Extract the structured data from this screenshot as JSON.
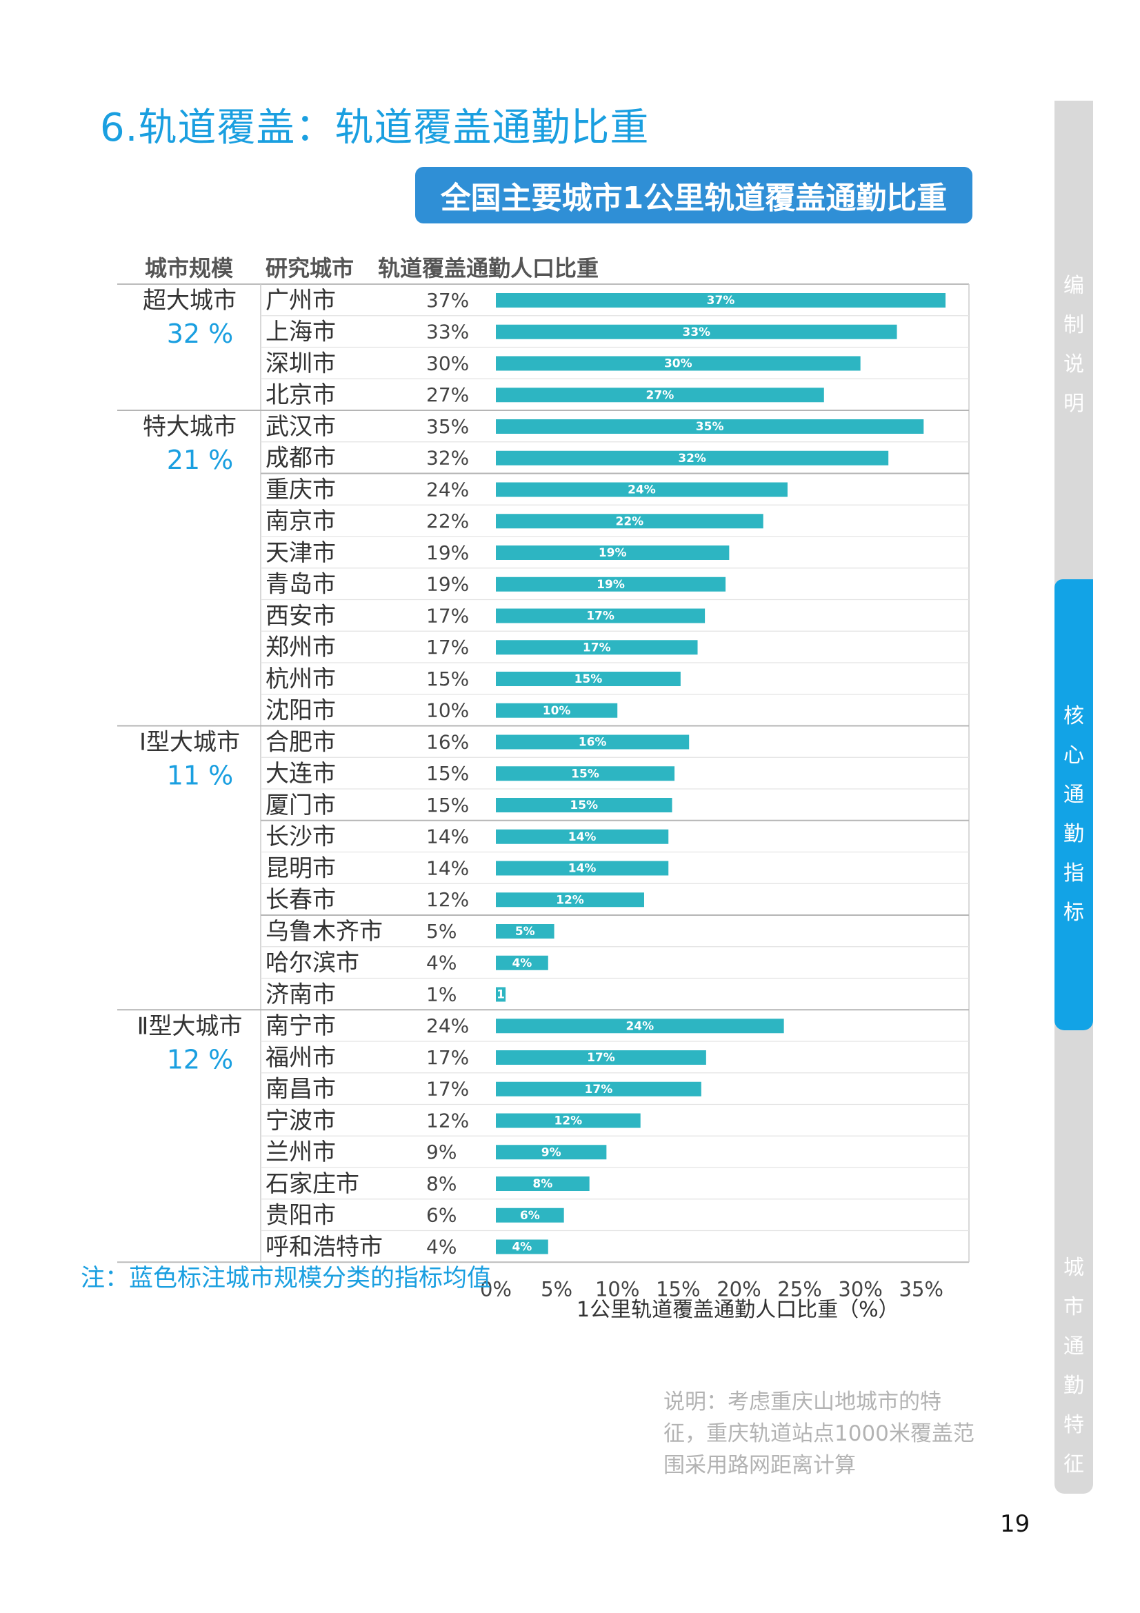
{
  "page": {
    "title": "6.轨道覆盖：轨道覆盖通勤比重",
    "chart_banner": "全国主要城市1公里轨道覆盖通勤比重",
    "note": "注：蓝色标注城市规模分类的指标均值",
    "explain": "说明：考虑重庆山地城市的特征，重庆轨道站点1000米覆盖范围采用路网距离计算",
    "page_number": "19"
  },
  "side_tabs": [
    {
      "label": "编制说明",
      "active": false
    },
    {
      "label": "核心通勤指标",
      "active": true
    },
    {
      "label": "城市通勤特征",
      "active": false
    }
  ],
  "colors": {
    "bar": "#2db5c2",
    "accent": "#1a9fe0",
    "banner": "#2f8fd6",
    "tab_active": "#12a3e6",
    "tab_inactive": "#d9d9d9"
  },
  "chart_data": {
    "type": "bar",
    "orientation": "horizontal",
    "title": "全国主要城市1公里轨道覆盖通勤比重",
    "column_headers": [
      "城市规模",
      "研究城市",
      "轨道覆盖通勤人口比重"
    ],
    "xlabel": "1公里轨道覆盖通勤人口比重（%）",
    "xlim": [
      0,
      37
    ],
    "xticks": [
      "0%",
      "5%",
      "10%",
      "15%",
      "20%",
      "25%",
      "30%",
      "35%"
    ],
    "xtick_values": [
      0,
      5,
      10,
      15,
      20,
      25,
      30,
      35
    ],
    "groups": [
      {
        "name": "超大城市",
        "average": "32 %",
        "first_row": 0
      },
      {
        "name": "特大城市",
        "average": "21 %",
        "first_row": 4
      },
      {
        "name": "Ⅰ型大城市",
        "average": "11 %",
        "first_row": 14
      },
      {
        "name": "Ⅱ型大城市",
        "average": "12 %",
        "first_row": 23
      }
    ],
    "separators_after": [
      3,
      5,
      13,
      16,
      19,
      22
    ],
    "rows": [
      {
        "city": "广州市",
        "label": "37%",
        "value": 37
      },
      {
        "city": "上海市",
        "label": "33%",
        "value": 33
      },
      {
        "city": "深圳市",
        "label": "30%",
        "value": 30
      },
      {
        "city": "北京市",
        "label": "27%",
        "value": 27
      },
      {
        "city": "武汉市",
        "label": "35%",
        "value": 35.2
      },
      {
        "city": "成都市",
        "label": "32%",
        "value": 32.3
      },
      {
        "city": "重庆市",
        "label": "24%",
        "value": 24
      },
      {
        "city": "南京市",
        "label": "22%",
        "value": 22
      },
      {
        "city": "天津市",
        "label": "19%",
        "value": 19.2
      },
      {
        "city": "青岛市",
        "label": "19%",
        "value": 18.9
      },
      {
        "city": "西安市",
        "label": "17%",
        "value": 17.2
      },
      {
        "city": "郑州市",
        "label": "17%",
        "value": 16.6
      },
      {
        "city": "杭州市",
        "label": "15%",
        "value": 15.2
      },
      {
        "city": "沈阳市",
        "label": "10%",
        "value": 10
      },
      {
        "city": "合肥市",
        "label": "16%",
        "value": 15.9
      },
      {
        "city": "大连市",
        "label": "15%",
        "value": 14.7
      },
      {
        "city": "厦门市",
        "label": "15%",
        "value": 14.5
      },
      {
        "city": "长沙市",
        "label": "14%",
        "value": 14.2
      },
      {
        "city": "昆明市",
        "label": "14%",
        "value": 14.2
      },
      {
        "city": "长春市",
        "label": "12%",
        "value": 12.2
      },
      {
        "city": "乌鲁木齐市",
        "label": "5%",
        "value": 4.8
      },
      {
        "city": "哈尔滨市",
        "label": "4%",
        "value": 4.3
      },
      {
        "city": "济南市",
        "label": "1%",
        "value": 0.8
      },
      {
        "city": "南宁市",
        "label": "24%",
        "value": 23.7
      },
      {
        "city": "福州市",
        "label": "17%",
        "value": 17.3
      },
      {
        "city": "南昌市",
        "label": "17%",
        "value": 16.9
      },
      {
        "city": "宁波市",
        "label": "12%",
        "value": 11.9
      },
      {
        "city": "兰州市",
        "label": "9%",
        "value": 9.1
      },
      {
        "city": "石家庄市",
        "label": "8%",
        "value": 7.7
      },
      {
        "city": "贵阳市",
        "label": "6%",
        "value": 5.6
      },
      {
        "city": "呼和浩特市",
        "label": "4%",
        "value": 4.3
      }
    ],
    "bar_value_labels": [
      "37%",
      "33%",
      "30%",
      "27%",
      "35%",
      "32%",
      "24%",
      "22%",
      "19%",
      "19%",
      "17%",
      "17%",
      "15%",
      "10%",
      "16%",
      "15%",
      "15%",
      "14%",
      "14%",
      "12%",
      "5%",
      "4%",
      "1",
      "24%",
      "17%",
      "17%",
      "12%",
      "9%",
      "8%",
      "6%",
      "4%"
    ],
    "grid": false
  }
}
